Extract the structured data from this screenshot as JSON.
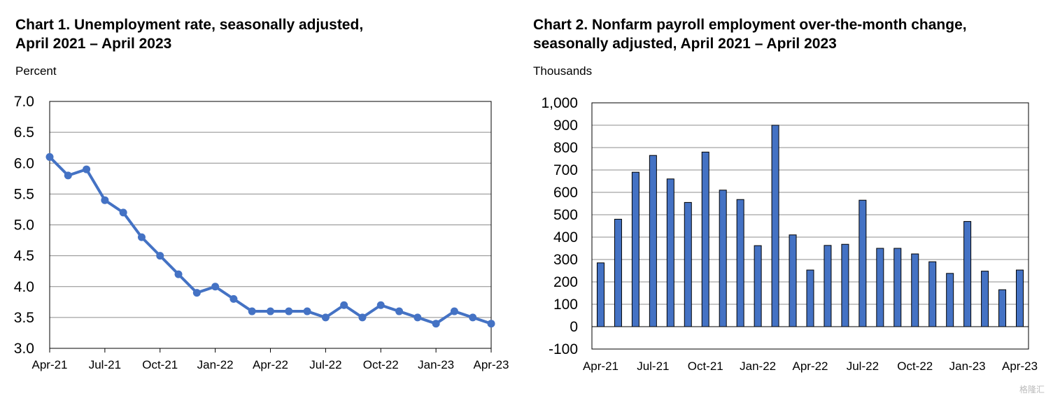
{
  "chart_data": [
    {
      "type": "line",
      "title": [
        "Chart 1. Unemployment rate, seasonally adjusted,",
        "April 2021 – April 2023"
      ],
      "ylabel": "Percent",
      "xlabel": "",
      "ylim": [
        3.0,
        7.0
      ],
      "yticks": [
        "3.0",
        "3.5",
        "4.0",
        "4.5",
        "5.0",
        "5.5",
        "6.0",
        "6.5",
        "7.0"
      ],
      "xtick_labels": [
        "Apr-21",
        "Jul-21",
        "Oct-21",
        "Jan-22",
        "Apr-22",
        "Jul-22",
        "Oct-22",
        "Jan-23",
        "Apr-23"
      ],
      "xtick_every": 3,
      "series_color": "#4472c4",
      "values": [
        6.1,
        5.8,
        5.9,
        5.4,
        5.2,
        4.8,
        4.5,
        4.2,
        3.9,
        4.0,
        3.8,
        3.6,
        3.6,
        3.6,
        3.6,
        3.5,
        3.7,
        3.5,
        3.7,
        3.6,
        3.5,
        3.4,
        3.6,
        3.5,
        3.4
      ]
    },
    {
      "type": "bar",
      "title": [
        "Chart 2. Nonfarm payroll employment over-the-month change,",
        "seasonally adjusted, April 2021 – April 2023"
      ],
      "ylabel": "Thousands",
      "xlabel": "",
      "ylim": [
        -100,
        1000
      ],
      "yticks": [
        "-100",
        "0",
        "100",
        "200",
        "300",
        "400",
        "500",
        "600",
        "700",
        "800",
        "900",
        "1,000"
      ],
      "xtick_labels": [
        "Apr-21",
        "Jul-21",
        "Oct-21",
        "Jan-22",
        "Apr-22",
        "Jul-22",
        "Oct-22",
        "Jan-23",
        "Apr-23"
      ],
      "xtick_every": 3,
      "series_color": "#4472c4",
      "values": [
        285,
        480,
        690,
        765,
        660,
        555,
        780,
        610,
        568,
        362,
        900,
        410,
        253,
        363,
        368,
        565,
        350,
        350,
        325,
        290,
        238,
        470,
        248,
        165,
        253
      ]
    }
  ],
  "watermark": "格隆汇"
}
